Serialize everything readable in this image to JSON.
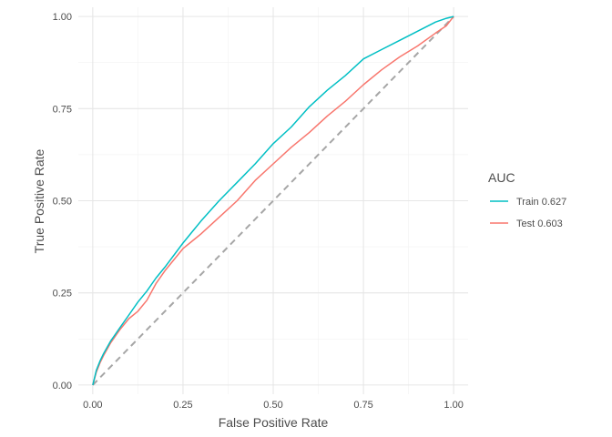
{
  "chart_data": {
    "type": "line",
    "title": "",
    "xlabel": "False Positive Rate",
    "ylabel": "True Positive Rate",
    "xlim": [
      -0.04,
      1.04
    ],
    "ylim": [
      -0.025,
      1.025
    ],
    "x_ticks": [
      "0.00",
      "0.25",
      "0.50",
      "0.75",
      "1.00"
    ],
    "y_ticks": [
      "0.00",
      "0.25",
      "0.50",
      "0.75",
      "1.00"
    ],
    "grid": true,
    "legend": {
      "title": "AUC",
      "position": "right"
    },
    "reference_line": {
      "style": "dashed",
      "color": "#a6a6a6",
      "points": [
        [
          0,
          0
        ],
        [
          1,
          1
        ]
      ]
    },
    "series": [
      {
        "name": "Train 0.627",
        "color": "#00BFC4",
        "points": [
          [
            0,
            0
          ],
          [
            0.01,
            0.04
          ],
          [
            0.02,
            0.065
          ],
          [
            0.03,
            0.085
          ],
          [
            0.05,
            0.12
          ],
          [
            0.075,
            0.155
          ],
          [
            0.1,
            0.19
          ],
          [
            0.125,
            0.225
          ],
          [
            0.15,
            0.255
          ],
          [
            0.175,
            0.29
          ],
          [
            0.2,
            0.32
          ],
          [
            0.25,
            0.385
          ],
          [
            0.275,
            0.415
          ],
          [
            0.3,
            0.445
          ],
          [
            0.35,
            0.5
          ],
          [
            0.4,
            0.55
          ],
          [
            0.45,
            0.6
          ],
          [
            0.5,
            0.655
          ],
          [
            0.55,
            0.7
          ],
          [
            0.6,
            0.755
          ],
          [
            0.65,
            0.8
          ],
          [
            0.7,
            0.84
          ],
          [
            0.75,
            0.885
          ],
          [
            0.8,
            0.91
          ],
          [
            0.85,
            0.935
          ],
          [
            0.9,
            0.96
          ],
          [
            0.95,
            0.985
          ],
          [
            0.98,
            0.995
          ],
          [
            1,
            1
          ]
        ]
      },
      {
        "name": "Test 0.603",
        "color": "#F8766D",
        "points": [
          [
            0,
            0
          ],
          [
            0.01,
            0.035
          ],
          [
            0.02,
            0.06
          ],
          [
            0.03,
            0.08
          ],
          [
            0.05,
            0.115
          ],
          [
            0.075,
            0.15
          ],
          [
            0.1,
            0.18
          ],
          [
            0.125,
            0.2
          ],
          [
            0.15,
            0.23
          ],
          [
            0.175,
            0.275
          ],
          [
            0.2,
            0.31
          ],
          [
            0.25,
            0.37
          ],
          [
            0.275,
            0.39
          ],
          [
            0.3,
            0.41
          ],
          [
            0.35,
            0.455
          ],
          [
            0.4,
            0.5
          ],
          [
            0.45,
            0.555
          ],
          [
            0.5,
            0.6
          ],
          [
            0.55,
            0.645
          ],
          [
            0.6,
            0.685
          ],
          [
            0.65,
            0.73
          ],
          [
            0.7,
            0.77
          ],
          [
            0.75,
            0.815
          ],
          [
            0.8,
            0.855
          ],
          [
            0.85,
            0.89
          ],
          [
            0.9,
            0.92
          ],
          [
            0.95,
            0.955
          ],
          [
            0.98,
            0.975
          ],
          [
            1,
            1
          ]
        ]
      }
    ]
  }
}
